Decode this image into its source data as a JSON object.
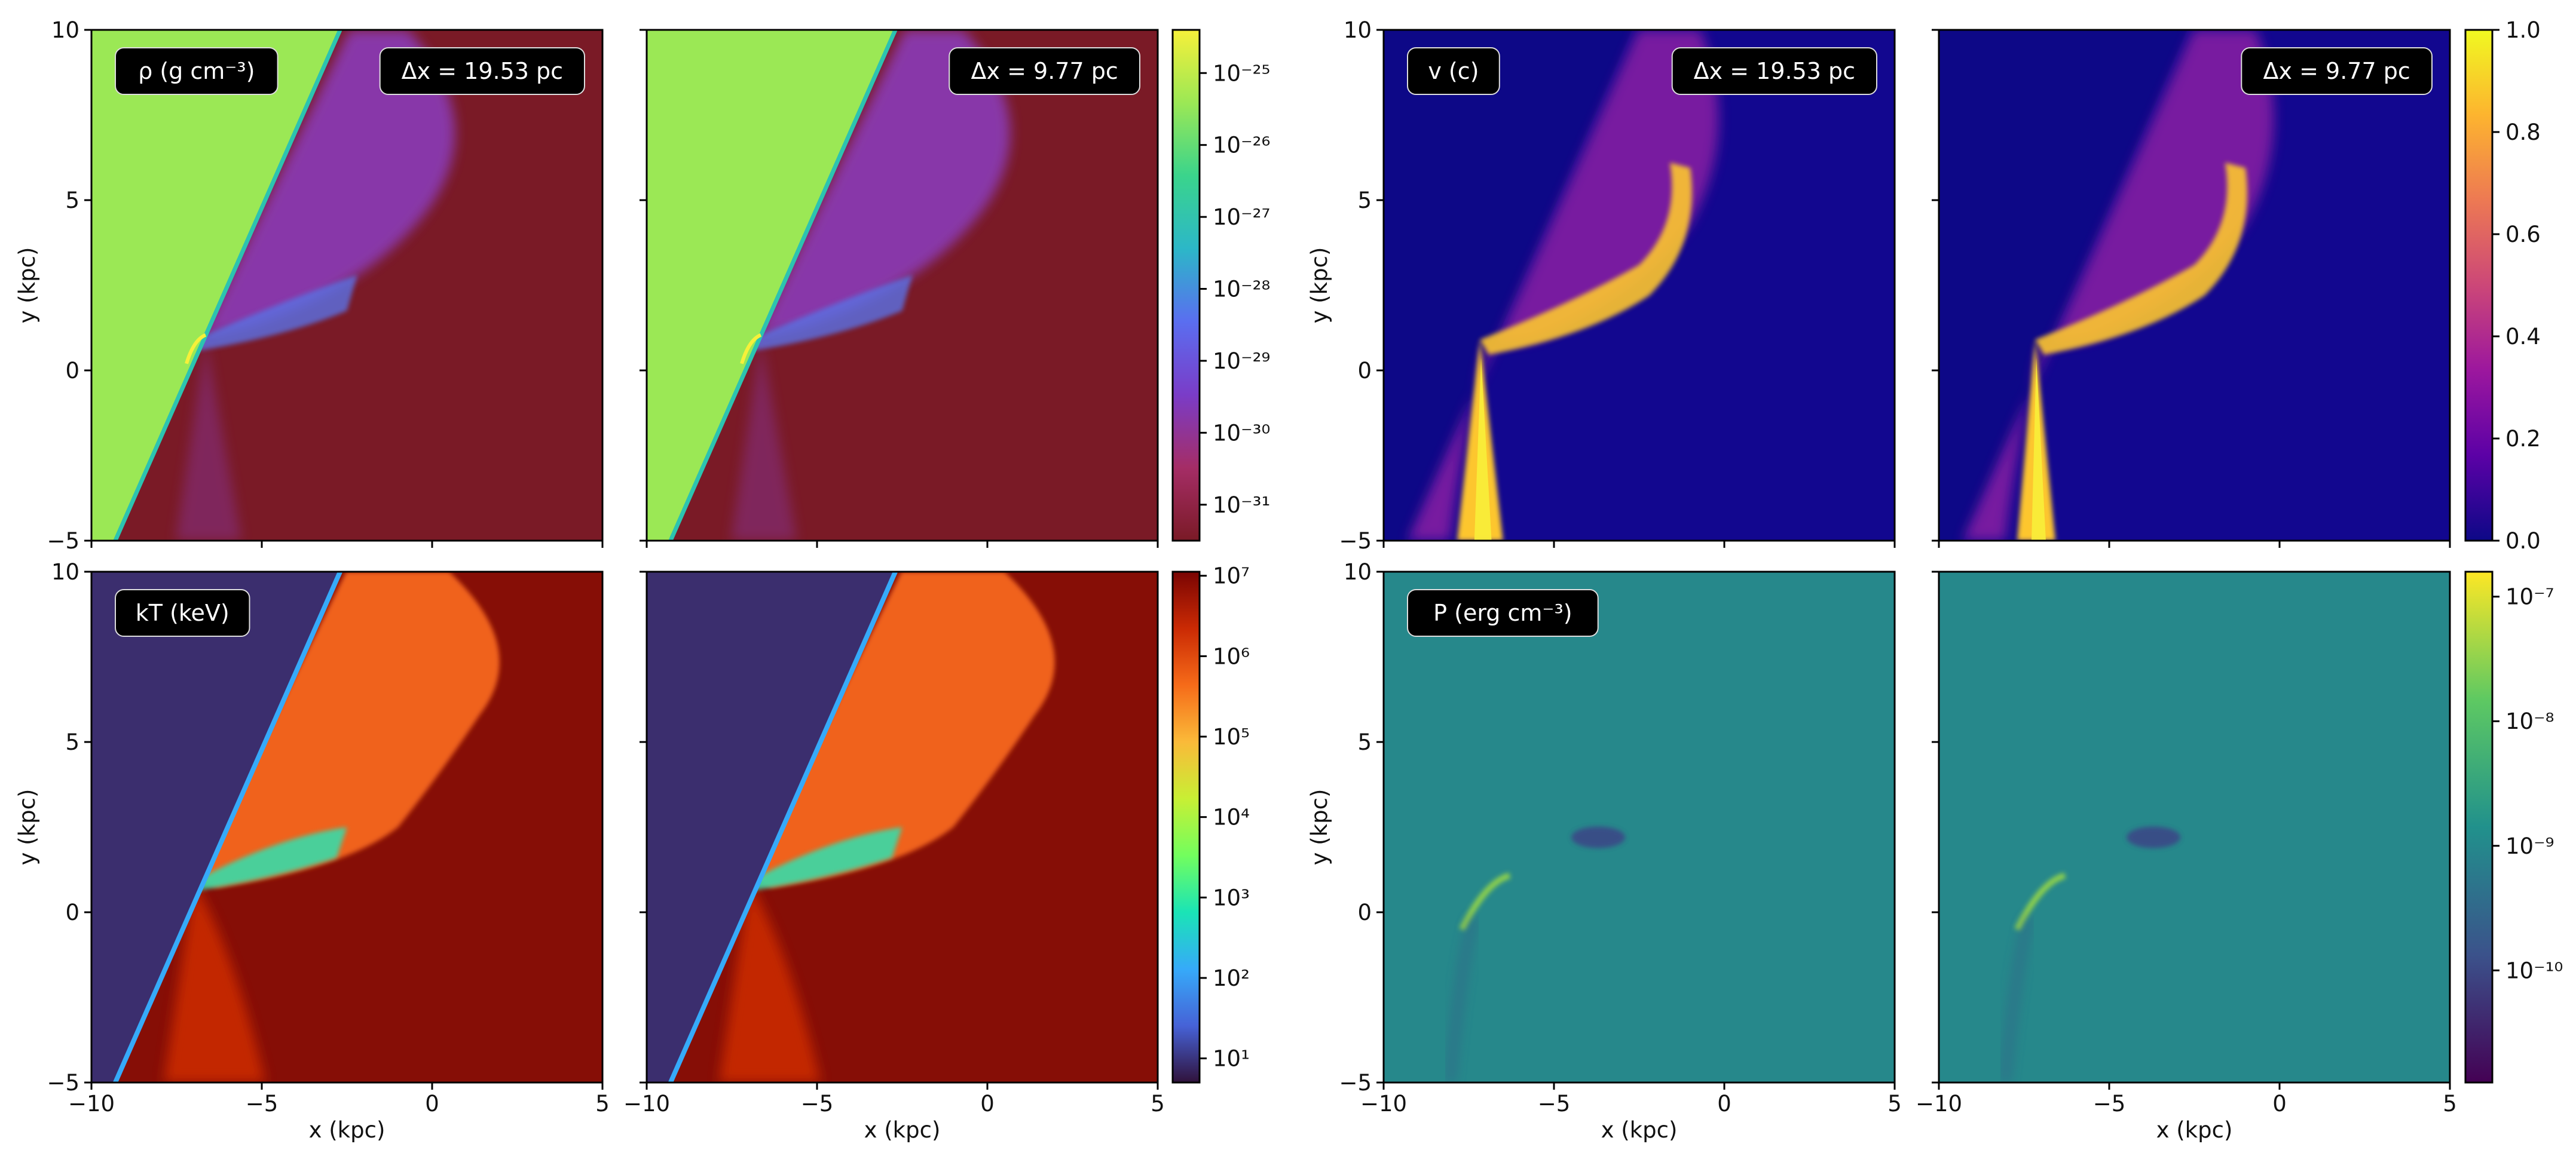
{
  "chart_data": [
    {
      "type": "heatmap",
      "quantity": "density",
      "panel_label": "ρ (g cm⁻³)",
      "resolution_label": "Δx = 19.53 pc",
      "xlabel": "",
      "ylabel": "y (kpc)",
      "xlim": [
        -10,
        5
      ],
      "ylim": [
        -5,
        10
      ]
    },
    {
      "type": "heatmap",
      "quantity": "density",
      "panel_label": "",
      "resolution_label": "Δx = 9.77 pc",
      "xlabel": "",
      "ylabel": "",
      "xlim": [
        -10,
        5
      ],
      "ylim": [
        -5,
        10
      ]
    },
    {
      "type": "heatmap",
      "quantity": "velocity",
      "panel_label": "v (c)",
      "resolution_label": "Δx = 19.53 pc",
      "xlabel": "",
      "ylabel": "y (kpc)",
      "xlim": [
        -10,
        5
      ],
      "ylim": [
        -5,
        10
      ]
    },
    {
      "type": "heatmap",
      "quantity": "velocity",
      "panel_label": "",
      "resolution_label": "Δx = 9.77 pc",
      "xlabel": "",
      "ylabel": "",
      "xlim": [
        -10,
        5
      ],
      "ylim": [
        -5,
        10
      ]
    },
    {
      "type": "heatmap",
      "quantity": "temperature",
      "panel_label": "kT (keV)",
      "resolution_label": "",
      "xlabel": "x (kpc)",
      "ylabel": "y (kpc)",
      "xlim": [
        -10,
        5
      ],
      "ylim": [
        -5,
        10
      ]
    },
    {
      "type": "heatmap",
      "quantity": "temperature",
      "panel_label": "",
      "resolution_label": "",
      "xlabel": "x (kpc)",
      "ylabel": "",
      "xlim": [
        -10,
        5
      ],
      "ylim": [
        -5,
        10
      ]
    },
    {
      "type": "heatmap",
      "quantity": "pressure",
      "panel_label": "P (erg cm⁻³)",
      "resolution_label": "",
      "xlabel": "x (kpc)",
      "ylabel": "y (kpc)",
      "xlim": [
        -10,
        5
      ],
      "ylim": [
        -5,
        10
      ]
    },
    {
      "type": "heatmap",
      "quantity": "pressure",
      "panel_label": "",
      "resolution_label": "",
      "xlabel": "x (kpc)",
      "ylabel": "",
      "xlim": [
        -10,
        5
      ],
      "ylim": [
        -5,
        10
      ]
    }
  ],
  "axis_ticks": {
    "x": [
      "−10",
      "−5",
      "0",
      "5"
    ],
    "x_values": [
      -10,
      -5,
      0,
      5
    ],
    "y": [
      "−5",
      "0",
      "5",
      "10"
    ],
    "y_values": [
      -5,
      0,
      5,
      10
    ]
  },
  "colorbars": [
    {
      "name": "density",
      "scale": "log",
      "range_log": [
        -31.5,
        -24.4
      ],
      "ticks": [
        "10⁻²⁵",
        "10⁻²⁶",
        "10⁻²⁷",
        "10⁻²⁸",
        "10⁻²⁹",
        "10⁻³⁰",
        "10⁻³¹"
      ],
      "tick_values_log": [
        -25,
        -26,
        -27,
        -28,
        -29,
        -30,
        -31
      ],
      "colors": [
        "#7a1a26",
        "#a52d66",
        "#7a3cc8",
        "#5a6ef0",
        "#2cb7c8",
        "#3ad48c",
        "#9be855",
        "#f6f03a"
      ]
    },
    {
      "name": "velocity",
      "scale": "linear",
      "range": [
        0,
        1
      ],
      "ticks": [
        "1.0",
        "0.8",
        "0.6",
        "0.4",
        "0.2",
        "0.0"
      ],
      "tick_values": [
        1.0,
        0.8,
        0.6,
        0.4,
        0.2,
        0.0
      ],
      "colors": [
        "#0d0887",
        "#5c01a6",
        "#9c179e",
        "#cc4778",
        "#ed7953",
        "#fdb42f",
        "#f0f921"
      ]
    },
    {
      "name": "temperature",
      "scale": "log",
      "range_log": [
        0.7,
        7.05
      ],
      "ticks": [
        "10⁷",
        "10⁶",
        "10⁵",
        "10⁴",
        "10³",
        "10²",
        "10¹"
      ],
      "tick_values_log": [
        7,
        6,
        5,
        4,
        3,
        2,
        1
      ],
      "colors": [
        "#30123b",
        "#4662d7",
        "#36aaf9",
        "#1ae4b6",
        "#72fe5e",
        "#c8ef34",
        "#faba39",
        "#f66b19",
        "#ca2a04",
        "#7a0403"
      ]
    },
    {
      "name": "pressure",
      "scale": "log",
      "range_log": [
        -10.9,
        -6.8
      ],
      "ticks": [
        "10⁻⁷",
        "10⁻⁸",
        "10⁻⁹",
        "10⁻¹⁰"
      ],
      "tick_values_log": [
        -7,
        -8,
        -9,
        -10
      ],
      "colors": [
        "#440154",
        "#3b528b",
        "#21918c",
        "#5ec962",
        "#fde725"
      ]
    }
  ],
  "field_colors": {
    "density": {
      "ambient": "#7a1a26",
      "wedge": "#9be855",
      "edge": "#2cc3b0",
      "plume": "#8b3cc0",
      "streamer": "#5a72e6",
      "hot": "#f6f03a"
    },
    "velocity": {
      "ambient": "#12078f",
      "plume": "#9a24a6",
      "jet": "#fdc62e",
      "jet_core": "#f8ee3a",
      "wedge": "#0d0887"
    },
    "temperature": {
      "ambient": "#860e06",
      "wedge": "#3b2e6e",
      "plume": "#f0621a",
      "hot": "#ca2a04",
      "stream": "#2ee2b0",
      "edge": "#36aaf9"
    },
    "pressure": {
      "ambient": "#26888b",
      "dark": "#3e3f86",
      "bright": "#8fd24c"
    }
  }
}
